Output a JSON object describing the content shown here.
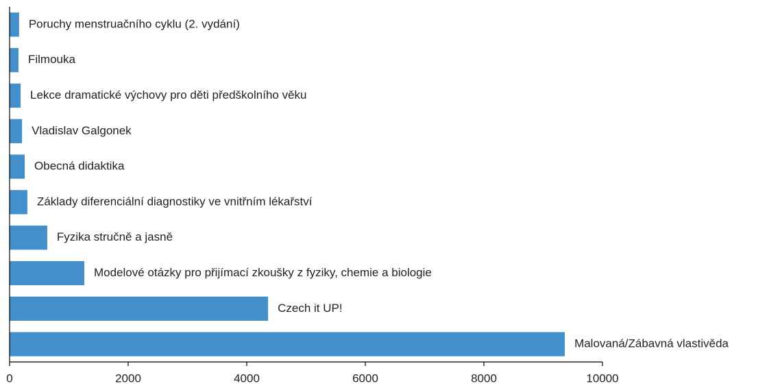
{
  "chart_data": {
    "type": "barh",
    "categories": [
      "Poruchy menstruačního cyklu (2. vydání)",
      "Filmouka",
      "Lekce dramatické výchovy pro děti předškolního věku",
      "Vladislav Galgonek",
      "Obecná didaktika",
      "Základy diferenciální diagnostiky ve vnitřním lékařství",
      "Fyzika stručně a jasně",
      "Modelové otázky pro přijímací zkoušky z fyziky, chemie a biologie",
      "Czech it UP!",
      "Malovaná/Zábavná vlastivěda"
    ],
    "values": [
      160,
      150,
      185,
      210,
      255,
      300,
      635,
      1260,
      4360,
      9365
    ],
    "color": "#428fcb",
    "xlim": [
      0,
      10000
    ],
    "xticks": [
      0,
      2000,
      4000,
      6000,
      8000,
      10000
    ]
  }
}
